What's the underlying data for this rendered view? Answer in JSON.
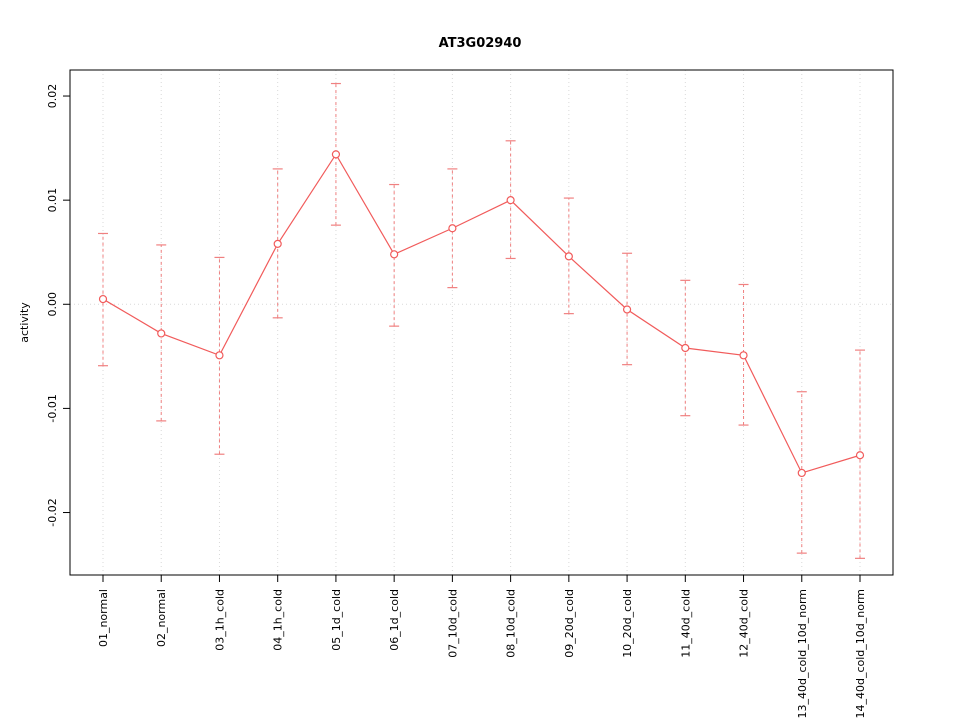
{
  "chart_data": {
    "type": "line",
    "title": "AT3G02940",
    "xlabel": "",
    "ylabel": "activity",
    "ylim": [
      -0.026,
      0.0225
    ],
    "yticks": [
      -0.02,
      -0.01,
      0,
      0.01,
      0.02
    ],
    "grid": {
      "vertical_dotted_at_each_category": true,
      "horizontal_dotted_at_zero": true,
      "color": "#d9d9d9"
    },
    "legend": "none",
    "marker": "open-circle",
    "colors": {
      "line": "#f15b5b",
      "error_bar": "#f08080",
      "axis": "#000000",
      "background": "#ffffff"
    },
    "categories": [
      "01_normal",
      "02_normal",
      "03_1h_cold",
      "04_1h_cold",
      "05_1d_cold",
      "06_1d_cold",
      "07_10d_cold",
      "08_10d_cold",
      "09_20d_cold",
      "10_20d_cold",
      "11_40d_cold",
      "12_40d_cold",
      "13_40d_cold_10d_norm",
      "14_40d_cold_10d_norm"
    ],
    "series": [
      {
        "name": "activity",
        "values": [
          0.0005,
          -0.0028,
          -0.0049,
          0.0058,
          0.0144,
          0.0048,
          0.0073,
          0.01,
          0.0046,
          -0.0005,
          -0.0042,
          -0.0049,
          -0.0162,
          -0.0145
        ],
        "lower": [
          -0.0059,
          -0.0112,
          -0.0144,
          -0.0013,
          0.0076,
          -0.0021,
          0.0016,
          0.0044,
          -0.0009,
          -0.0058,
          -0.0107,
          -0.0116,
          -0.0239,
          -0.0244
        ],
        "upper": [
          0.0068,
          0.0057,
          0.0045,
          0.013,
          0.0212,
          0.0115,
          0.013,
          0.0157,
          0.0102,
          0.0049,
          0.0023,
          0.0019,
          -0.0084,
          -0.0044
        ]
      }
    ]
  }
}
